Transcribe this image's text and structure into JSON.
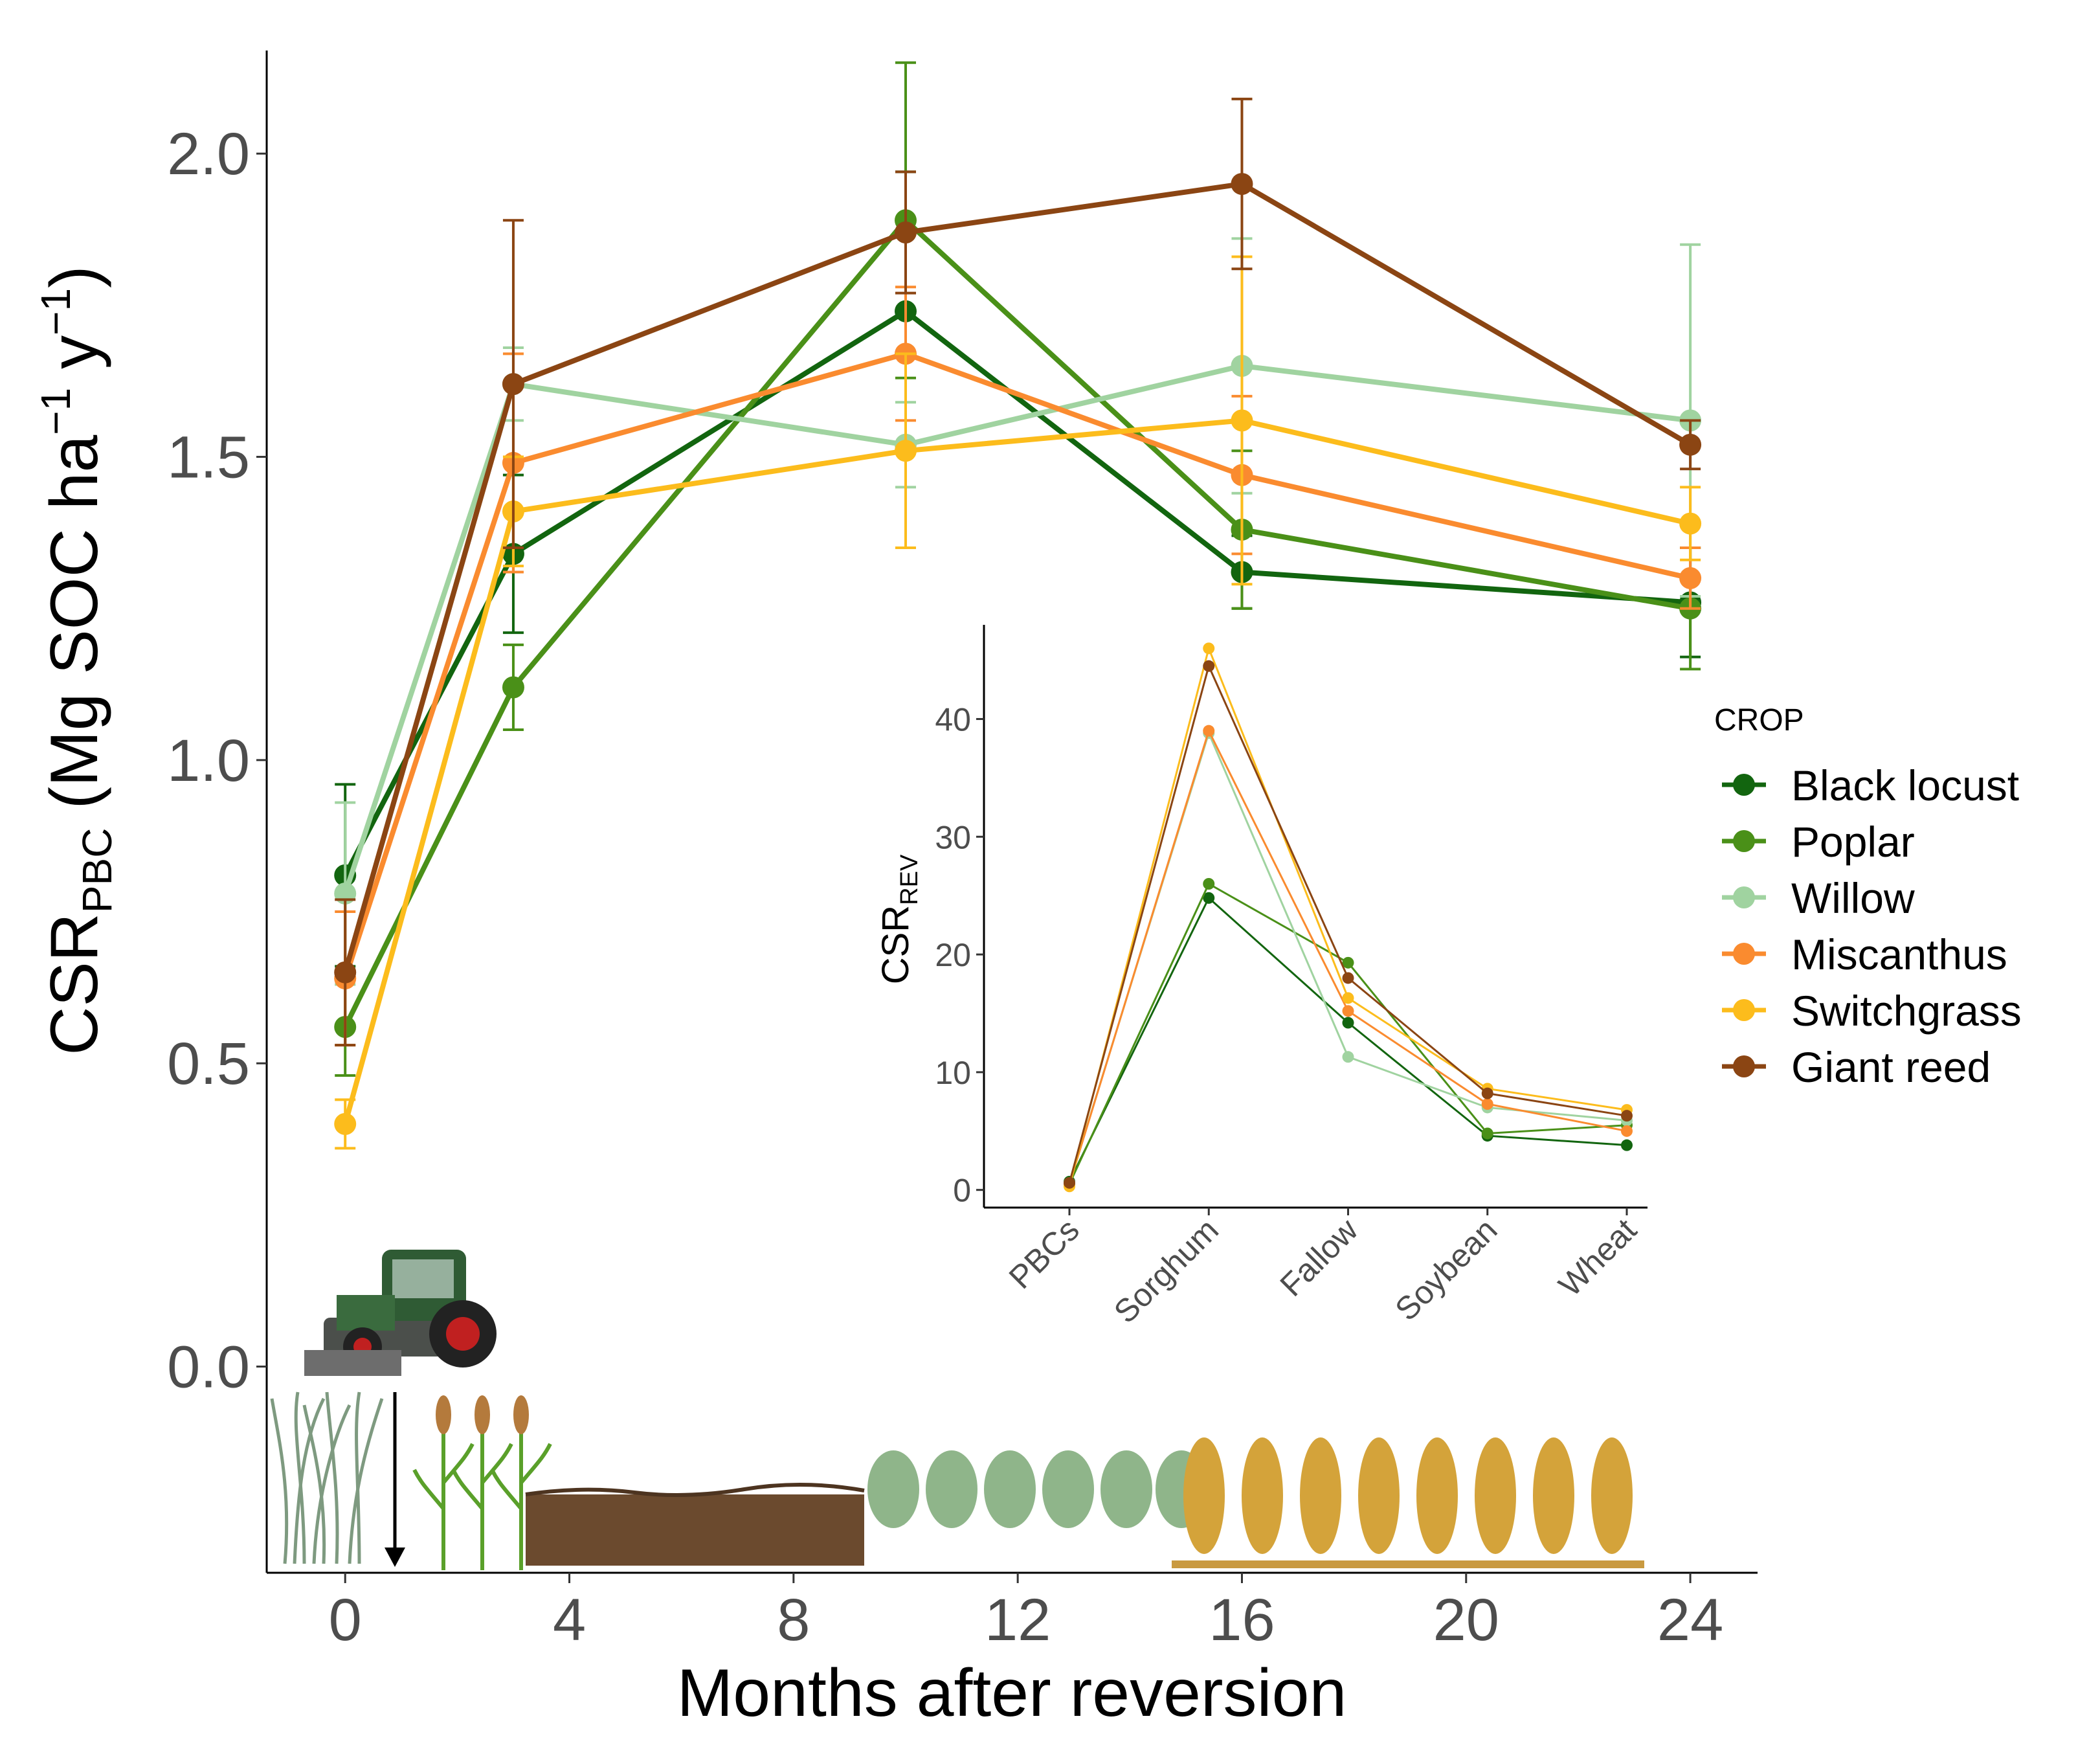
{
  "chart_data": [
    {
      "type": "line",
      "xlabel": "Months after reversion",
      "ylabel_main": "CSR",
      "ylabel_sub": "PBC",
      "ylabel_rest": " (Mg SOC ha",
      "ylabel_sup1": "−1",
      "ylabel_mid": " y",
      "ylabel_sup2": "−1",
      "ylabel_end": ")",
      "x_ticks": [
        0,
        4,
        8,
        12,
        16,
        20,
        24
      ],
      "y_ticks": [
        0.0,
        0.5,
        1.0,
        1.5,
        2.0
      ],
      "x_tick_labels": [
        "0",
        "4",
        "8",
        "12",
        "16",
        "20",
        "24"
      ],
      "y_tick_labels": [
        "0.0",
        "0.5",
        "1.0",
        "1.5",
        "2.0"
      ],
      "xlim": [
        -1.4,
        25.2
      ],
      "ylim": [
        -0.34,
        2.17
      ],
      "x": [
        0,
        3,
        10,
        16,
        24
      ],
      "series": [
        {
          "name": "Black locust",
          "color": "#12650f",
          "values": [
            0.81,
            1.34,
            1.74,
            1.31,
            1.26
          ],
          "err": [
            0.15,
            0.13,
            0.23,
            0.06,
            0.09
          ]
        },
        {
          "name": "Poplar",
          "color": "#4a9018",
          "values": [
            0.56,
            1.12,
            1.89,
            1.38,
            1.25
          ],
          "err": [
            0.08,
            0.07,
            0.26,
            0.13,
            0.1
          ]
        },
        {
          "name": "Willow",
          "color": "#a0d3a0",
          "values": [
            0.78,
            1.62,
            1.52,
            1.65,
            1.56
          ],
          "err": [
            0.15,
            0.06,
            0.07,
            0.21,
            0.29
          ]
        },
        {
          "name": "Miscanthus",
          "color": "#fa8b2f",
          "values": [
            0.64,
            1.49,
            1.67,
            1.47,
            1.3
          ],
          "err": [
            0.11,
            0.18,
            0.11,
            0.13,
            0.05
          ]
        },
        {
          "name": "Switchgrass",
          "color": "#fcbc1c",
          "values": [
            0.4,
            1.41,
            1.51,
            1.56,
            1.39
          ],
          "err": [
            0.04,
            0.09,
            0.16,
            0.27,
            0.06
          ]
        },
        {
          "name": "Giant reed",
          "color": "#8b4513",
          "values": [
            0.65,
            1.62,
            1.87,
            1.95,
            1.52
          ],
          "err": [
            0.12,
            0.27,
            0.1,
            0.14,
            0.04
          ]
        }
      ],
      "legend_title": "CROP",
      "legend_position": "right"
    },
    {
      "type": "line",
      "ylabel_main": "CSR",
      "ylabel_sub": "REV",
      "categories": [
        "PBCs",
        "Sorghum",
        "Fallow",
        "Soybean",
        "Wheat"
      ],
      "y_ticks": [
        0,
        10,
        20,
        30,
        40
      ],
      "y_tick_labels": [
        "0",
        "10",
        "20",
        "30",
        "40"
      ],
      "ylim": [
        -1.5,
        48
      ],
      "series": [
        {
          "name": "Black locust",
          "color": "#12650f",
          "values": [
            0.7,
            24.8,
            14.2,
            4.6,
            3.8
          ]
        },
        {
          "name": "Poplar",
          "color": "#4a9018",
          "values": [
            0.5,
            26.0,
            19.3,
            4.8,
            5.5
          ]
        },
        {
          "name": "Willow",
          "color": "#a0d3a0",
          "values": [
            0.6,
            38.8,
            11.3,
            7.0,
            5.9
          ]
        },
        {
          "name": "Miscanthus",
          "color": "#fa8b2f",
          "values": [
            0.5,
            39.0,
            15.2,
            7.3,
            5.0
          ]
        },
        {
          "name": "Switchgrass",
          "color": "#fcbc1c",
          "values": [
            0.3,
            46.0,
            16.3,
            8.6,
            6.8
          ]
        },
        {
          "name": "Giant reed",
          "color": "#8b4513",
          "values": [
            0.6,
            44.5,
            18.0,
            8.2,
            6.3
          ]
        }
      ]
    }
  ]
}
